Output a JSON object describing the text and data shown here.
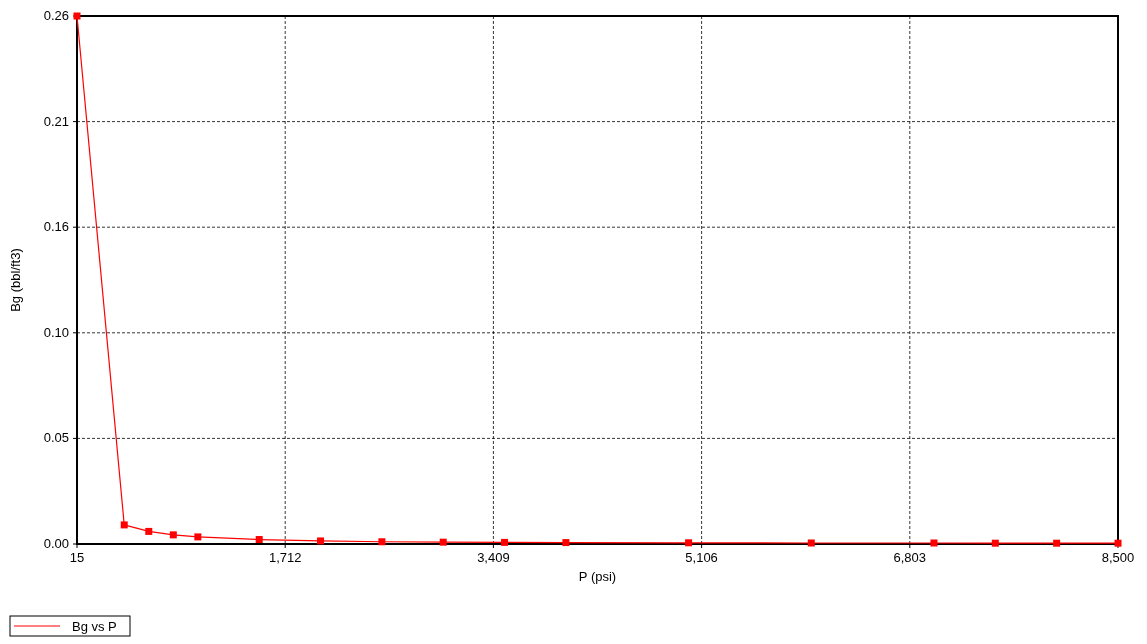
{
  "chart_data": {
    "type": "line",
    "xlabel": "P (psi)",
    "ylabel": "Bg (bbl/ft3)",
    "x": [
      15,
      400,
      600,
      800,
      1000,
      1500,
      2000,
      2500,
      3000,
      3500,
      4000,
      5000,
      6000,
      7000,
      7500,
      8000,
      8500
    ],
    "series": [
      {
        "name": "Bg vs P",
        "color": "#ff0000",
        "values": [
          0.26,
          0.0094,
          0.0062,
          0.0045,
          0.0035,
          0.0022,
          0.0015,
          0.0011,
          0.0009,
          0.0008,
          0.0007,
          0.0006,
          0.0005,
          0.0005,
          0.0004,
          0.0004,
          0.0004
        ]
      }
    ],
    "xlim": [
      15,
      8500
    ],
    "xticks": [
      {
        "value": 15,
        "label": "15"
      },
      {
        "value": 1712,
        "label": "1,712"
      },
      {
        "value": 3409,
        "label": "3,409"
      },
      {
        "value": 5106,
        "label": "5,106"
      },
      {
        "value": 6803,
        "label": "6,803"
      },
      {
        "value": 8500,
        "label": "8,500"
      }
    ],
    "ylim": [
      0,
      0.26
    ],
    "yticks": [
      {
        "value": 0,
        "label": "0.00"
      },
      {
        "value": 0.052,
        "label": "0.05"
      },
      {
        "value": 0.104,
        "label": "0.10"
      },
      {
        "value": 0.156,
        "label": "0.16"
      },
      {
        "value": 0.208,
        "label": "0.21"
      },
      {
        "value": 0.26,
        "label": "0.26"
      }
    ],
    "grid": true,
    "legend": "bottom left",
    "marker": "square",
    "line_style": "solid"
  }
}
